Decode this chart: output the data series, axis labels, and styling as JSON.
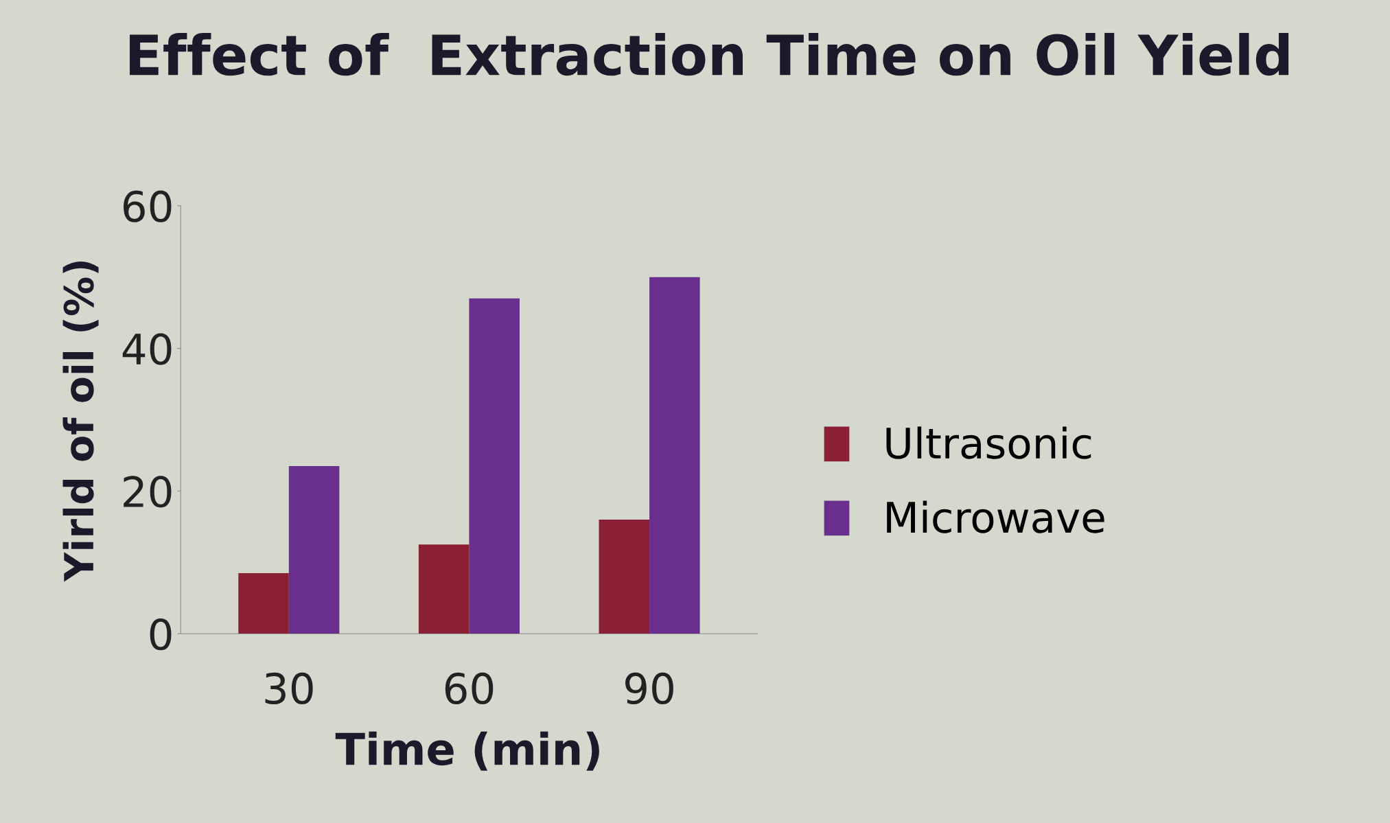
{
  "chart_data": {
    "type": "bar",
    "title": "Effect of  Extraction Time on Oil Yield",
    "xlabel": "Time (min)",
    "ylabel": "Yirld of oil (%)",
    "categories": [
      "30",
      "60",
      "90"
    ],
    "series": [
      {
        "name": "Ultrasonic",
        "color": "#8b2035",
        "values": [
          8.5,
          12.5,
          16
        ]
      },
      {
        "name": "Microwave",
        "color": "#6a2e8e",
        "values": [
          23.5,
          47,
          50
        ]
      }
    ],
    "ylim": [
      0,
      60
    ],
    "yticks": [
      0,
      20,
      40,
      60
    ],
    "grid": false,
    "legend": "right"
  }
}
